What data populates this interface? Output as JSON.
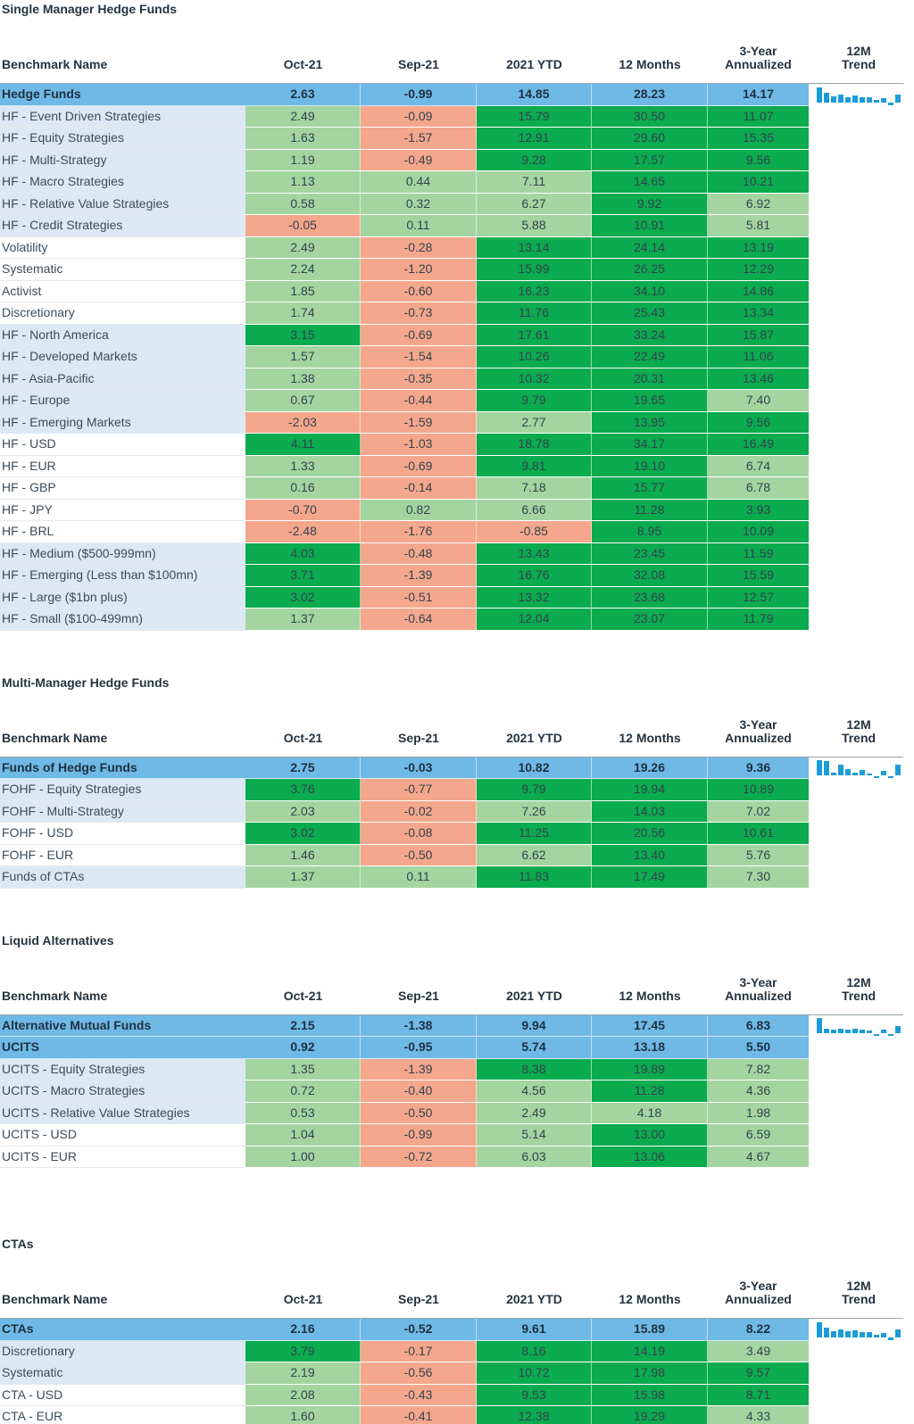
{
  "colors": {
    "summary_row_bg": "#6FB9E6",
    "alt_row_bg": "#DCE9F5",
    "white_row_bg": "#FFFFFF",
    "green_strong": "#0BAB4F",
    "green_light": "#A4D5A1",
    "red_negative": "#F4A78C",
    "sparkline_bar": "#1B9CD8",
    "header_text": "#243341",
    "header_rule": "#97A3AB"
  },
  "columns": [
    {
      "id": "benchmark-name",
      "lines": [
        "Benchmark Name"
      ]
    },
    {
      "id": "oct-21",
      "lines": [
        "Oct-21"
      ]
    },
    {
      "id": "sep-21",
      "lines": [
        "Sep-21"
      ]
    },
    {
      "id": "2021-ytd",
      "lines": [
        "2021 YTD"
      ]
    },
    {
      "id": "12-months",
      "lines": [
        "12 Months"
      ]
    },
    {
      "id": "3-year-annualized",
      "lines": [
        "3-Year",
        "Annualized"
      ]
    },
    {
      "id": "12m-trend",
      "lines": [
        "12M",
        "Trend"
      ]
    }
  ],
  "sections": [
    {
      "title": "Single Manager Hedge Funds",
      "rows": [
        {
          "name": "Hedge Funds",
          "summary": true,
          "values": [
            "2.63",
            "-0.99",
            "14.85",
            "28.23",
            "14.17"
          ],
          "trend": [
            5.9,
            3.2,
            1.6,
            2.4,
            1.5,
            2.1,
            1.3,
            1.2,
            0.2,
            0.9,
            -0.99,
            2.63
          ]
        },
        {
          "name": "HF - Event Driven Strategies",
          "alt": true,
          "values": [
            "2.49",
            "-0.09",
            "15.79",
            "30.50",
            "11.07"
          ],
          "tint": [
            "l",
            "r",
            "g",
            "g",
            "g"
          ]
        },
        {
          "name": "HF - Equity Strategies",
          "alt": true,
          "values": [
            "1.63",
            "-1.57",
            "12.91",
            "29.60",
            "15.35"
          ],
          "tint": [
            "l",
            "r",
            "g",
            "g",
            "g"
          ]
        },
        {
          "name": "HF - Multi-Strategy",
          "alt": true,
          "values": [
            "1.19",
            "-0.49",
            "9.28",
            "17.57",
            "9.56"
          ],
          "tint": [
            "l",
            "r",
            "g",
            "g",
            "g"
          ]
        },
        {
          "name": "HF - Macro Strategies",
          "alt": true,
          "values": [
            "1.13",
            "0.44",
            "7.11",
            "14.65",
            "10.21"
          ],
          "tint": [
            "l",
            "l",
            "l",
            "g",
            "g"
          ]
        },
        {
          "name": "HF - Relative Value Strategies",
          "alt": true,
          "values": [
            "0.58",
            "0.32",
            "6.27",
            "9.92",
            "6.92"
          ],
          "tint": [
            "l",
            "l",
            "l",
            "g",
            "l"
          ]
        },
        {
          "name": "HF - Credit Strategies",
          "alt": true,
          "values": [
            "-0.05",
            "0.11",
            "5.88",
            "10.91",
            "5.81"
          ],
          "tint": [
            "r",
            "l",
            "l",
            "g",
            "l"
          ]
        },
        {
          "name": "Volatility",
          "alt": false,
          "values": [
            "2.49",
            "-0.28",
            "13.14",
            "24.14",
            "13.19"
          ],
          "tint": [
            "l",
            "r",
            "g",
            "g",
            "g"
          ]
        },
        {
          "name": "Systematic",
          "alt": false,
          "values": [
            "2.24",
            "-1.20",
            "15.99",
            "26.25",
            "12.29"
          ],
          "tint": [
            "l",
            "r",
            "g",
            "g",
            "g"
          ]
        },
        {
          "name": "Activist",
          "alt": false,
          "values": [
            "1.85",
            "-0.60",
            "16.23",
            "34.10",
            "14.86"
          ],
          "tint": [
            "l",
            "r",
            "g",
            "g",
            "g"
          ]
        },
        {
          "name": "Discretionary",
          "alt": false,
          "values": [
            "1.74",
            "-0.73",
            "11.76",
            "25.43",
            "13.34"
          ],
          "tint": [
            "l",
            "r",
            "g",
            "g",
            "g"
          ]
        },
        {
          "name": "HF - North America",
          "alt": true,
          "values": [
            "3.15",
            "-0.69",
            "17.61",
            "33.24",
            "15.87"
          ],
          "tint": [
            "g",
            "r",
            "g",
            "g",
            "g"
          ]
        },
        {
          "name": "HF - Developed Markets",
          "alt": true,
          "values": [
            "1.57",
            "-1.54",
            "10.26",
            "22.49",
            "11.06"
          ],
          "tint": [
            "l",
            "r",
            "g",
            "g",
            "g"
          ]
        },
        {
          "name": "HF - Asia-Pacific",
          "alt": true,
          "values": [
            "1.38",
            "-0.35",
            "10.32",
            "20.31",
            "13.46"
          ],
          "tint": [
            "l",
            "r",
            "g",
            "g",
            "g"
          ]
        },
        {
          "name": "HF - Europe",
          "alt": true,
          "values": [
            "0.67",
            "-0.44",
            "9.79",
            "19.65",
            "7.40"
          ],
          "tint": [
            "l",
            "r",
            "g",
            "g",
            "l"
          ]
        },
        {
          "name": "HF - Emerging Markets",
          "alt": true,
          "values": [
            "-2.03",
            "-1.59",
            "2.77",
            "13.95",
            "9.56"
          ],
          "tint": [
            "r",
            "r",
            "l",
            "g",
            "g"
          ]
        },
        {
          "name": "HF - USD",
          "alt": false,
          "values": [
            "4.11",
            "-1.03",
            "18.78",
            "34.17",
            "16.49"
          ],
          "tint": [
            "g",
            "r",
            "g",
            "g",
            "g"
          ]
        },
        {
          "name": "HF - EUR",
          "alt": false,
          "values": [
            "1.33",
            "-0.69",
            "9.81",
            "19.10",
            "6.74"
          ],
          "tint": [
            "l",
            "r",
            "g",
            "g",
            "l"
          ]
        },
        {
          "name": "HF - GBP",
          "alt": false,
          "values": [
            "0.16",
            "-0.14",
            "7.18",
            "15.77",
            "6.78"
          ],
          "tint": [
            "l",
            "r",
            "l",
            "g",
            "l"
          ]
        },
        {
          "name": "HF - JPY",
          "alt": false,
          "values": [
            "-0.70",
            "0.82",
            "6.66",
            "11.28",
            "3.93"
          ],
          "tint": [
            "r",
            "l",
            "l",
            "g",
            "g"
          ]
        },
        {
          "name": "HF - BRL",
          "alt": false,
          "values": [
            "-2.48",
            "-1.76",
            "-0.85",
            "8.95",
            "10.09"
          ],
          "tint": [
            "r",
            "r",
            "r",
            "g",
            "g"
          ]
        },
        {
          "name": "HF - Medium ($500-999mn)",
          "alt": true,
          "values": [
            "4.03",
            "-0.48",
            "13.43",
            "23.45",
            "11.59"
          ],
          "tint": [
            "g",
            "r",
            "g",
            "g",
            "g"
          ]
        },
        {
          "name": "HF - Emerging (Less than $100mn)",
          "alt": true,
          "values": [
            "3.71",
            "-1.39",
            "16.76",
            "32.08",
            "15.59"
          ],
          "tint": [
            "g",
            "r",
            "g",
            "g",
            "g"
          ]
        },
        {
          "name": "HF - Large ($1bn plus)",
          "alt": true,
          "values": [
            "3.02",
            "-0.51",
            "13.32",
            "23.68",
            "12.57"
          ],
          "tint": [
            "g",
            "r",
            "g",
            "g",
            "g"
          ]
        },
        {
          "name": "HF - Small ($100-499mn)",
          "alt": true,
          "values": [
            "1.37",
            "-0.64",
            "12.04",
            "23.07",
            "11.79"
          ],
          "tint": [
            "l",
            "r",
            "g",
            "g",
            "g"
          ]
        }
      ]
    },
    {
      "title": "Multi-Manager Hedge Funds",
      "rows": [
        {
          "name": "Funds of Hedge Funds",
          "summary": true,
          "values": [
            "2.75",
            "-0.03",
            "10.82",
            "19.26",
            "9.36"
          ],
          "trend": [
            4.1,
            3.9,
            0.4,
            2.7,
            1.3,
            0.3,
            1.0,
            0.1,
            -0.3,
            0.7,
            -0.03,
            2.75
          ]
        },
        {
          "name": "FOHF - Equity Strategies",
          "alt": true,
          "values": [
            "3.76",
            "-0.77",
            "9.79",
            "19.94",
            "10.89"
          ],
          "tint": [
            "g",
            "r",
            "g",
            "g",
            "g"
          ]
        },
        {
          "name": "FOHF - Multi-Strategy",
          "alt": true,
          "values": [
            "2.03",
            "-0.02",
            "7.26",
            "14.03",
            "7.02"
          ],
          "tint": [
            "l",
            "r",
            "l",
            "g",
            "l"
          ]
        },
        {
          "name": "FOHF - USD",
          "alt": false,
          "values": [
            "3.02",
            "-0.08",
            "11.25",
            "20.56",
            "10.61"
          ],
          "tint": [
            "g",
            "r",
            "g",
            "g",
            "g"
          ]
        },
        {
          "name": "FOHF - EUR",
          "alt": false,
          "values": [
            "1.46",
            "-0.50",
            "6.62",
            "13.40",
            "5.76"
          ],
          "tint": [
            "l",
            "r",
            "l",
            "g",
            "l"
          ]
        },
        {
          "name": "Funds of CTAs",
          "alt": true,
          "values": [
            "1.37",
            "0.11",
            "11.83",
            "17.49",
            "7.30"
          ],
          "tint": [
            "l",
            "l",
            "g",
            "g",
            "l"
          ]
        }
      ]
    },
    {
      "title": "Liquid Alternatives",
      "rows": [
        {
          "name": "Alternative Mutual Funds",
          "summary": true,
          "values": [
            "2.15",
            "-1.38",
            "9.94",
            "17.45",
            "6.83"
          ],
          "trend": [
            5.6,
            1.2,
            0.8,
            1.1,
            0.9,
            1.0,
            0.6,
            0.4,
            -0.2,
            0.6,
            -1.38,
            2.15
          ]
        },
        {
          "name": "UCITS",
          "summary": true,
          "values": [
            "0.92",
            "-0.95",
            "5.74",
            "13.18",
            "5.50"
          ]
        },
        {
          "name": "UCITS - Equity Strategies",
          "alt": true,
          "values": [
            "1.35",
            "-1.39",
            "8.38",
            "19.89",
            "7.82"
          ],
          "tint": [
            "l",
            "r",
            "g",
            "g",
            "l"
          ]
        },
        {
          "name": "UCITS - Macro Strategies",
          "alt": true,
          "values": [
            "0.72",
            "-0.40",
            "4.56",
            "11.28",
            "4.36"
          ],
          "tint": [
            "l",
            "r",
            "l",
            "g",
            "l"
          ]
        },
        {
          "name": "UCITS - Relative Value Strategies",
          "alt": true,
          "values": [
            "0.53",
            "-0.50",
            "2.49",
            "4.18",
            "1.98"
          ],
          "tint": [
            "l",
            "r",
            "l",
            "l",
            "l"
          ]
        },
        {
          "name": "UCITS - USD",
          "alt": false,
          "values": [
            "1.04",
            "-0.99",
            "5.14",
            "13.00",
            "6.59"
          ],
          "tint": [
            "l",
            "r",
            "l",
            "g",
            "l"
          ]
        },
        {
          "name": "UCITS - EUR",
          "alt": false,
          "values": [
            "1.00",
            "-0.72",
            "6.03",
            "13.06",
            "4.67"
          ],
          "tint": [
            "l",
            "r",
            "l",
            "g",
            "l"
          ]
        }
      ]
    },
    {
      "title": "CTAs",
      "rows": [
        {
          "name": "CTAs",
          "summary": true,
          "values": [
            "2.16",
            "-0.52",
            "9.61",
            "15.89",
            "8.22"
          ],
          "trend": [
            5.3,
            2.9,
            1.5,
            2.3,
            1.5,
            2.1,
            1.4,
            1.2,
            0.2,
            0.8,
            -0.52,
            2.16
          ]
        },
        {
          "name": "Discretionary",
          "alt": true,
          "values": [
            "3.79",
            "-0.17",
            "8.16",
            "14.19",
            "3.49"
          ],
          "tint": [
            "g",
            "r",
            "g",
            "g",
            "l"
          ]
        },
        {
          "name": "Systematic",
          "alt": true,
          "values": [
            "2.19",
            "-0.56",
            "10.72",
            "17.98",
            "9.57"
          ],
          "tint": [
            "l",
            "r",
            "g",
            "g",
            "g"
          ]
        },
        {
          "name": "CTA - USD",
          "alt": false,
          "values": [
            "2.08",
            "-0.43",
            "9.53",
            "15.98",
            "8.71"
          ],
          "tint": [
            "l",
            "r",
            "g",
            "g",
            "g"
          ]
        },
        {
          "name": "CTA - EUR",
          "alt": false,
          "values": [
            "1.60",
            "-0.41",
            "12.38",
            "19.29",
            "4.33"
          ],
          "tint": [
            "l",
            "r",
            "g",
            "g",
            "l"
          ]
        }
      ]
    }
  ]
}
